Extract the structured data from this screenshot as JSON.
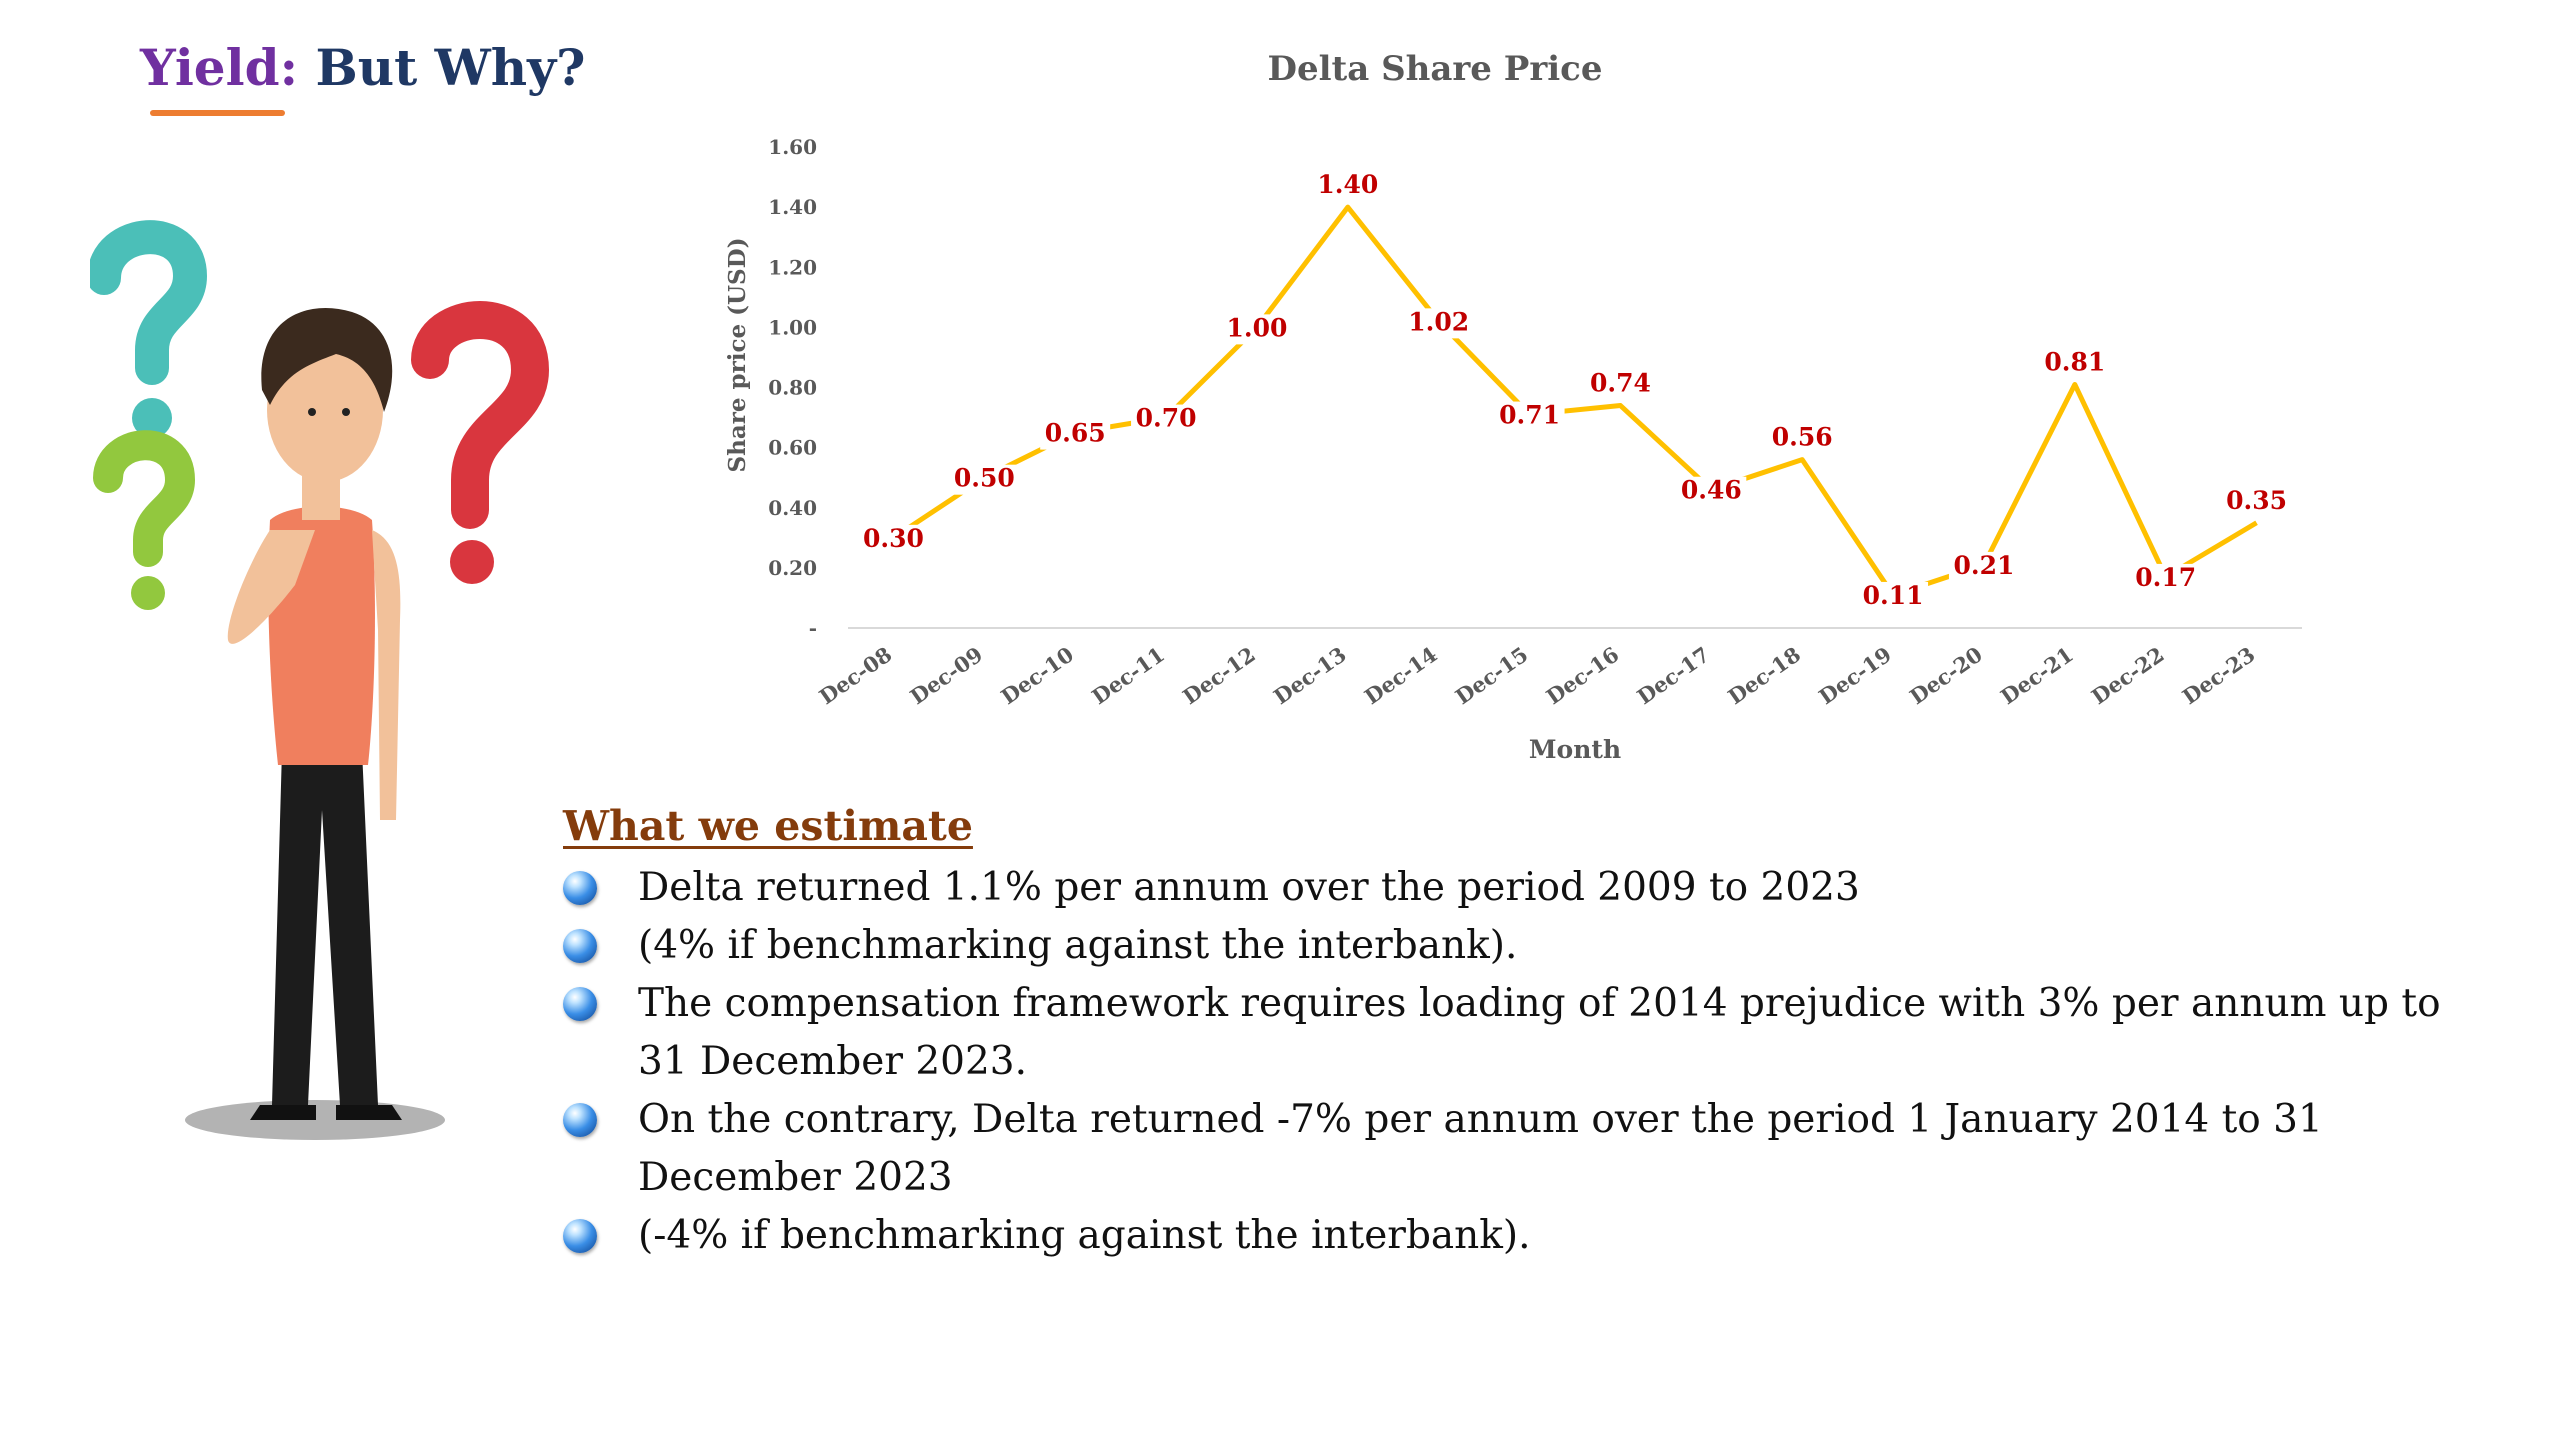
{
  "slide": {
    "title_accent": "Yield:",
    "title_rest": "But Why?"
  },
  "colors": {
    "line": "#ffc000",
    "data_label": "#c00000",
    "axis_text": "#595959",
    "title_accent": "#7030a0",
    "title_rest": "#1f3864",
    "heading": "#843c0c"
  },
  "chart_data": {
    "type": "line",
    "title": "Delta Share Price",
    "xlabel": "Month",
    "ylabel": "Share price (USD)",
    "ylim": [
      0,
      1.6
    ],
    "y_ticks": [
      "-",
      "0.20",
      "0.40",
      "0.60",
      "0.80",
      "1.00",
      "1.20",
      "1.40",
      "1.60"
    ],
    "categories": [
      "Dec-08",
      "Dec-09",
      "Dec-10",
      "Dec-11",
      "Dec-12",
      "Dec-13",
      "Dec-14",
      "Dec-15",
      "Dec-16",
      "Dec-17",
      "Dec-18",
      "Dec-19",
      "Dec-20",
      "Dec-21",
      "Dec-22",
      "Dec-23"
    ],
    "values": [
      0.3,
      0.5,
      0.65,
      0.7,
      1.0,
      1.4,
      1.02,
      0.71,
      0.74,
      0.46,
      0.56,
      0.11,
      0.21,
      0.81,
      0.17,
      0.35
    ],
    "data_labels": [
      "0.30",
      "0.50",
      "0.65",
      "0.70",
      "1.00",
      "1.40",
      "1.02",
      "0.71",
      "0.74",
      "0.46",
      "0.56",
      "0.11",
      "0.21",
      "0.81",
      "0.17",
      "0.35"
    ],
    "grid": false,
    "legend": "none"
  },
  "estimate": {
    "heading": "What we estimate",
    "bullets": [
      "Delta returned 1.1% per annum over the period 2009 to 2023",
      "(4% if benchmarking against the interbank).",
      "The compensation framework requires loading of 2014 prejudice with 3% per annum up to 31 December 2023.",
      "On the contrary, Delta returned -7% per annum over the period 1 January 2014 to 31 December 2023",
      "(-4% if benchmarking against the interbank)."
    ]
  }
}
